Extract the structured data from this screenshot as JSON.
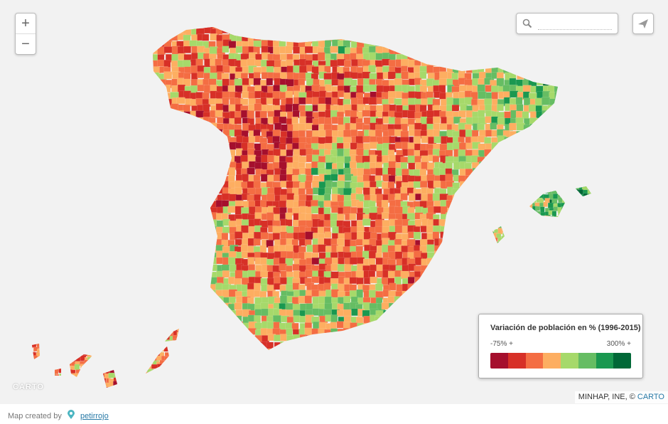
{
  "map": {
    "zoom_in": "+",
    "zoom_out": "−",
    "legend": {
      "title": "Variación de población en % (1996-2015)",
      "min_label": "-75% +",
      "max_label": "300% +",
      "colors": [
        "#a50f2d",
        "#d73027",
        "#f46d43",
        "#fdae61",
        "#a6d96a",
        "#66bd63",
        "#1a9850",
        "#006837"
      ]
    },
    "attribution": {
      "text": "MINHAP, INE, © ",
      "link": "CARTO"
    },
    "logo": "CARTO"
  },
  "footer": {
    "created_by": "Map created by",
    "author": "petirrojo"
  }
}
